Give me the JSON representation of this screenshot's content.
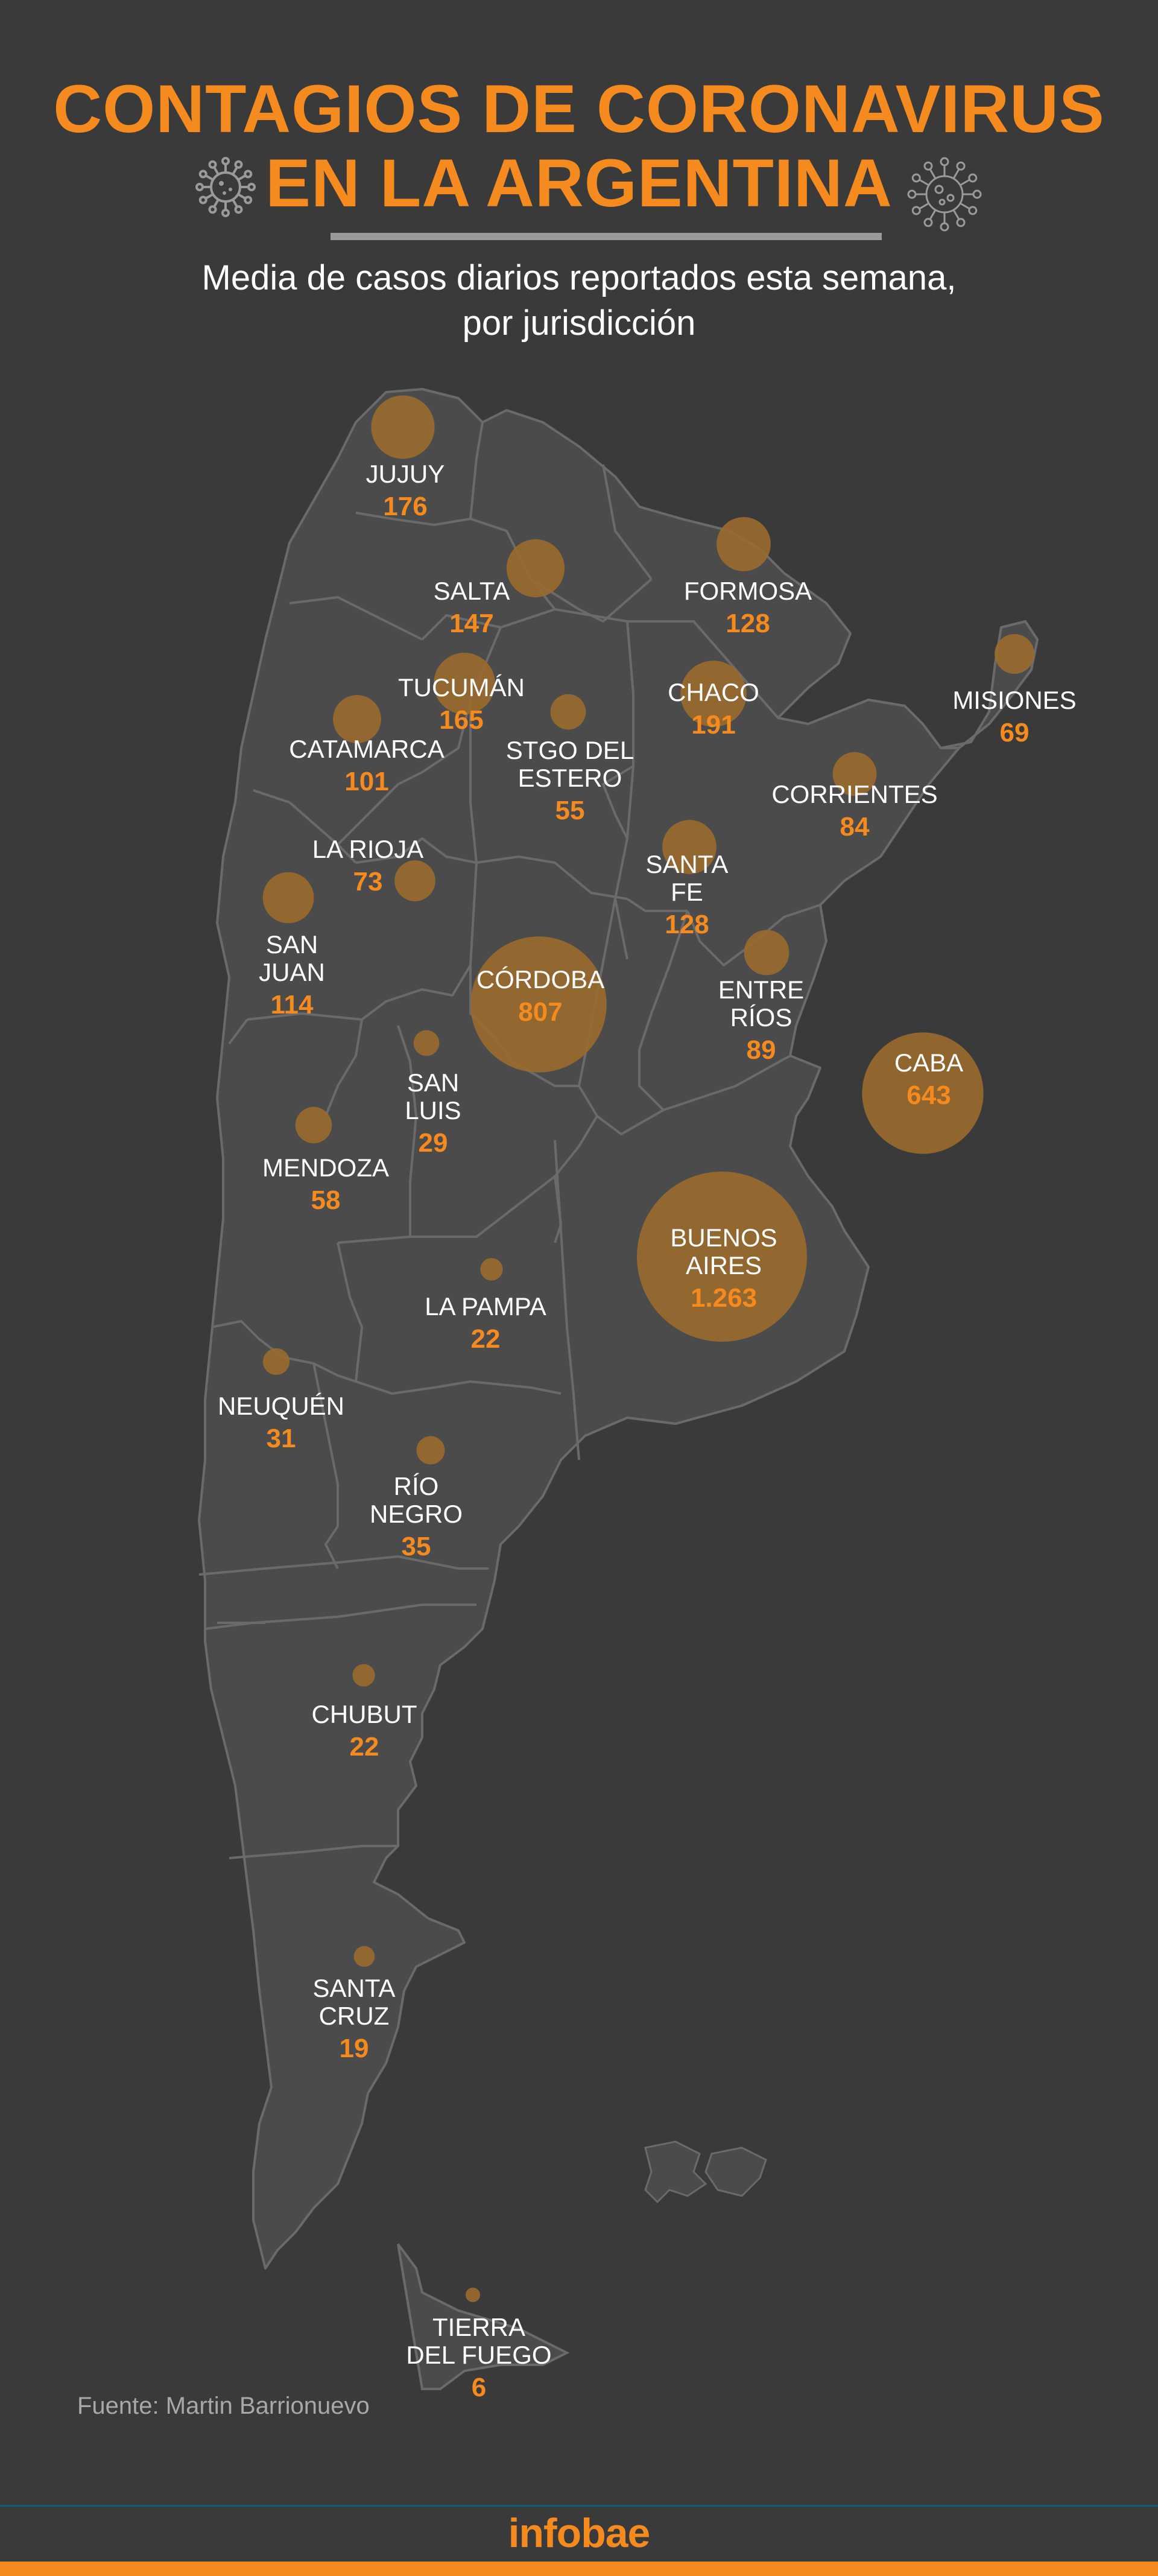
{
  "title": {
    "line1": "CONTAGIOS DE CORONAVIRUS",
    "line2": "EN LA ARGENTINA"
  },
  "subtitle": {
    "line1": "Media de casos diarios reportados esta semana,",
    "line2": "por jurisdicción"
  },
  "icons": [
    "virus-icon",
    "virus-icon"
  ],
  "colors": {
    "background": "#3a3a3a",
    "land": "#4b4b4b",
    "borders": "#6a6a6a",
    "accent": "#f58a1f",
    "bubble": "#9a6a2e",
    "label": "#ffffff",
    "value": "#f58a1f"
  },
  "provinces": [
    {
      "id": "jujuy",
      "name": [
        "JUJUY"
      ],
      "value": "176",
      "cases": 176
    },
    {
      "id": "salta",
      "name": [
        "SALTA"
      ],
      "value": "147",
      "cases": 147
    },
    {
      "id": "formosa",
      "name": [
        "FORMOSA"
      ],
      "value": "128",
      "cases": 128
    },
    {
      "id": "tucuman",
      "name": [
        "TUCUMÁN"
      ],
      "value": "165",
      "cases": 165
    },
    {
      "id": "chaco",
      "name": [
        "CHACO"
      ],
      "value": "191",
      "cases": 191
    },
    {
      "id": "misiones",
      "name": [
        "MISIONES"
      ],
      "value": "69",
      "cases": 69
    },
    {
      "id": "catamarca",
      "name": [
        "CATAMARCA"
      ],
      "value": "101",
      "cases": 101
    },
    {
      "id": "stgo-del-estero",
      "name": [
        "STGO DEL",
        "ESTERO"
      ],
      "value": "55",
      "cases": 55
    },
    {
      "id": "corrientes",
      "name": [
        "CORRIENTES"
      ],
      "value": "84",
      "cases": 84
    },
    {
      "id": "la-rioja",
      "name": [
        "LA RIOJA"
      ],
      "value": "73",
      "cases": 73
    },
    {
      "id": "santa-fe",
      "name": [
        "SANTA",
        "FE"
      ],
      "value": "128",
      "cases": 128
    },
    {
      "id": "san-juan",
      "name": [
        "SAN",
        "JUAN"
      ],
      "value": "114",
      "cases": 114
    },
    {
      "id": "cordoba",
      "name": [
        "CÓRDOBA"
      ],
      "value": "807",
      "cases": 807
    },
    {
      "id": "entre-rios",
      "name": [
        "ENTRE",
        "RÍOS"
      ],
      "value": "89",
      "cases": 89
    },
    {
      "id": "caba",
      "name": [
        "CABA"
      ],
      "value": "643",
      "cases": 643
    },
    {
      "id": "san-luis",
      "name": [
        "SAN",
        "LUIS"
      ],
      "value": "29",
      "cases": 29
    },
    {
      "id": "mendoza",
      "name": [
        "MENDOZA"
      ],
      "value": "58",
      "cases": 58
    },
    {
      "id": "buenos-aires",
      "name": [
        "BUENOS",
        "AIRES"
      ],
      "value": "1.263",
      "cases": 1263
    },
    {
      "id": "la-pampa",
      "name": [
        "LA PAMPA"
      ],
      "value": "22",
      "cases": 22
    },
    {
      "id": "neuquen",
      "name": [
        "NEUQUÉN"
      ],
      "value": "31",
      "cases": 31
    },
    {
      "id": "rio-negro",
      "name": [
        "RÍO",
        "NEGRO"
      ],
      "value": "35",
      "cases": 35
    },
    {
      "id": "chubut",
      "name": [
        "CHUBUT"
      ],
      "value": "22",
      "cases": 22
    },
    {
      "id": "santa-cruz",
      "name": [
        "SANTA",
        "CRUZ"
      ],
      "value": "19",
      "cases": 19
    },
    {
      "id": "tierra-del-fuego",
      "name": [
        "TIERRA",
        "DEL FUEGO"
      ],
      "value": "6",
      "cases": 6
    }
  ],
  "source": "Fuente: Martin Barrionuevo",
  "brand": "infobae"
}
